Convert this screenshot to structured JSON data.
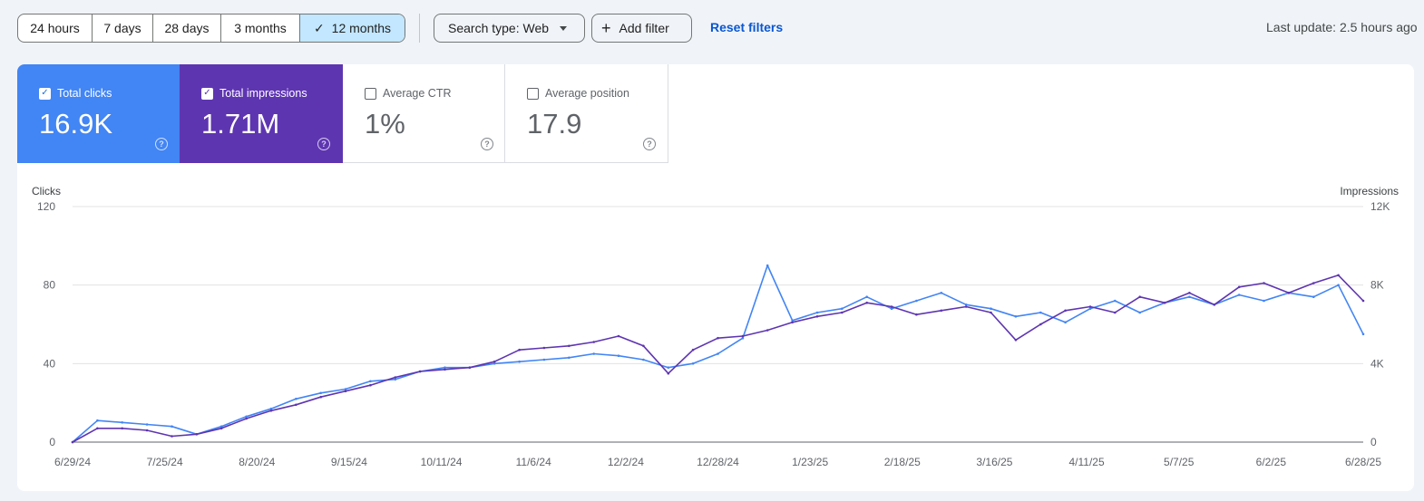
{
  "toolbar": {
    "ranges": [
      {
        "label": "24 hours",
        "selected": false
      },
      {
        "label": "7 days",
        "selected": false
      },
      {
        "label": "28 days",
        "selected": false
      },
      {
        "label": "3 months",
        "selected": false
      },
      {
        "label": "12 months",
        "selected": true
      }
    ],
    "search_type": "Search type: Web",
    "add_filter": "Add filter",
    "reset_filters": "Reset filters",
    "last_update": "Last update: 2.5 hours ago"
  },
  "metrics": [
    {
      "label": "Total clicks",
      "value": "16.9K",
      "checked": true,
      "color": "#4285f4"
    },
    {
      "label": "Total impressions",
      "value": "1.71M",
      "checked": true,
      "color": "#5e35b1"
    },
    {
      "label": "Average CTR",
      "value": "1%",
      "checked": false
    },
    {
      "label": "Average position",
      "value": "17.9",
      "checked": false
    }
  ],
  "chart_data": {
    "type": "line",
    "left_axis": {
      "label": "Clicks",
      "ticks": [
        "0",
        "40",
        "80",
        "120"
      ],
      "range": [
        0,
        120
      ]
    },
    "right_axis": {
      "label": "Impressions",
      "ticks": [
        "0",
        "4K",
        "8K",
        "12K"
      ],
      "range": [
        0,
        12000
      ]
    },
    "x_tick_labels": [
      "6/29/24",
      "7/25/24",
      "8/20/24",
      "9/15/24",
      "10/11/24",
      "11/6/24",
      "12/2/24",
      "12/28/24",
      "1/23/25",
      "2/18/25",
      "3/16/25",
      "4/11/25",
      "5/7/25",
      "6/2/25",
      "6/28/25"
    ],
    "x_range": [
      "6/29/24",
      "6/28/25"
    ],
    "series": [
      {
        "name": "Clicks",
        "color": "#4285f4",
        "axis": "left",
        "dates": [
          "6/29/24",
          "7/6/24",
          "7/13/24",
          "7/20/24",
          "7/27/24",
          "8/3/24",
          "8/10/24",
          "8/17/24",
          "8/24/24",
          "8/31/24",
          "9/7/24",
          "9/14/24",
          "9/21/24",
          "9/28/24",
          "10/5/24",
          "10/12/24",
          "10/19/24",
          "10/26/24",
          "11/2/24",
          "11/9/24",
          "11/16/24",
          "11/23/24",
          "11/30/24",
          "12/7/24",
          "12/14/24",
          "12/21/24",
          "12/28/24",
          "1/4/25",
          "1/11/25",
          "1/18/25",
          "1/25/25",
          "2/1/25",
          "2/8/25",
          "2/15/25",
          "2/22/25",
          "3/1/25",
          "3/8/25",
          "3/15/25",
          "3/22/25",
          "3/29/25",
          "4/5/25",
          "4/12/25",
          "4/19/25",
          "4/26/25",
          "5/3/25",
          "5/10/25",
          "5/17/25",
          "5/24/25",
          "5/31/25",
          "6/7/25",
          "6/14/25",
          "6/21/25",
          "6/28/25"
        ],
        "values": [
          0,
          11,
          10,
          9,
          8,
          4,
          8,
          13,
          17,
          22,
          25,
          27,
          31,
          32,
          36,
          38,
          38,
          40,
          41,
          42,
          43,
          45,
          44,
          42,
          38,
          40,
          45,
          53,
          90,
          62,
          66,
          68,
          74,
          68,
          72,
          76,
          70,
          68,
          64,
          66,
          61,
          68,
          72,
          66,
          71,
          74,
          70,
          75,
          72,
          76,
          74,
          80,
          55
        ]
      },
      {
        "name": "Impressions",
        "color": "#5e35b1",
        "axis": "right",
        "dates": [
          "6/29/24",
          "7/6/24",
          "7/13/24",
          "7/20/24",
          "7/27/24",
          "8/3/24",
          "8/10/24",
          "8/17/24",
          "8/24/24",
          "8/31/24",
          "9/7/24",
          "9/14/24",
          "9/21/24",
          "9/28/24",
          "10/5/24",
          "10/12/24",
          "10/19/24",
          "10/26/24",
          "11/2/24",
          "11/9/24",
          "11/16/24",
          "11/23/24",
          "11/30/24",
          "12/7/24",
          "12/14/24",
          "12/21/24",
          "12/28/24",
          "1/4/25",
          "1/11/25",
          "1/18/25",
          "1/25/25",
          "2/1/25",
          "2/8/25",
          "2/15/25",
          "2/22/25",
          "3/1/25",
          "3/8/25",
          "3/15/25",
          "3/22/25",
          "3/29/25",
          "4/5/25",
          "4/12/25",
          "4/19/25",
          "4/26/25",
          "5/3/25",
          "5/10/25",
          "5/17/25",
          "5/24/25",
          "5/31/25",
          "6/7/25",
          "6/14/25",
          "6/21/25",
          "6/28/25"
        ],
        "values": [
          0,
          700,
          700,
          600,
          300,
          400,
          700,
          1200,
          1600,
          1900,
          2300,
          2600,
          2900,
          3300,
          3600,
          3700,
          3800,
          4100,
          4700,
          4800,
          4900,
          5100,
          5400,
          4900,
          3500,
          4700,
          5300,
          5400,
          5700,
          6100,
          6400,
          6600,
          7100,
          6900,
          6500,
          6700,
          6900,
          6600,
          5200,
          6000,
          6700,
          6900,
          6600,
          7400,
          7100,
          7600,
          7000,
          7900,
          8100,
          7600,
          8100,
          8500,
          7200
        ]
      }
    ],
    "grid": true,
    "legend": "none"
  }
}
